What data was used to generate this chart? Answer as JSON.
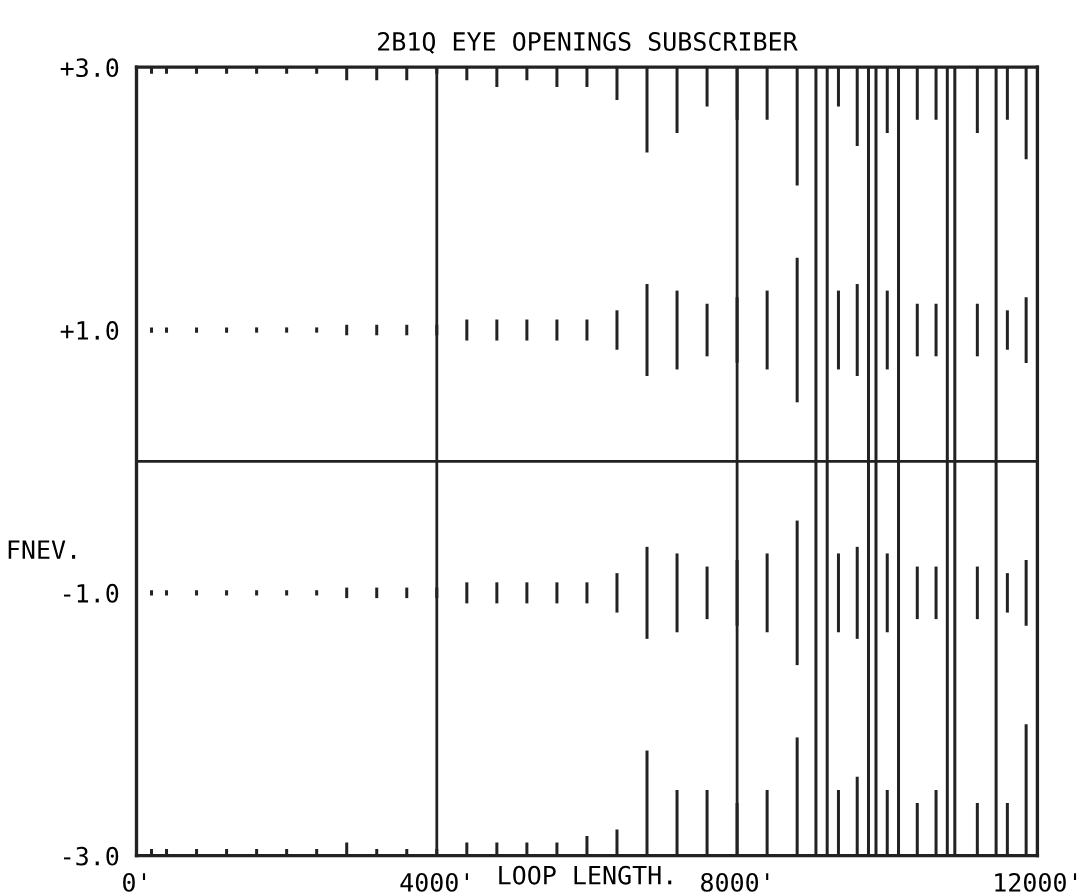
{
  "chart_data": {
    "type": "bar",
    "title": "2B1Q EYE OPENINGS SUBSCRIBER",
    "xlabel": "LOOP LENGTH.",
    "ylabel": "FNEV.",
    "xlim": [
      0,
      12000
    ],
    "ylim": [
      -3.0,
      3.0
    ],
    "xticks": [
      {
        "value": 0,
        "label": "0'"
      },
      {
        "value": 4000,
        "label": "4000'"
      },
      {
        "value": 8000,
        "label": "8000'"
      },
      {
        "value": 12000,
        "label": "12000'"
      }
    ],
    "yticks": [
      {
        "value": 3.0,
        "label": "+3.0"
      },
      {
        "value": 1.0,
        "label": "+1.0"
      },
      {
        "value": -1.0,
        "label": "-1.0"
      },
      {
        "value": -3.0,
        "label": "-3.0"
      }
    ],
    "grid": "x",
    "ref_lines": [
      {
        "axis": "y",
        "value": 0,
        "label": null,
        "color": "#222222"
      }
    ],
    "series": [
      {
        "color": "#222222",
        "x": [
          200,
          400,
          800,
          1200,
          1600,
          2000,
          2400,
          2800,
          3200,
          3600,
          4000,
          4400,
          4800,
          5200,
          5600,
          6000,
          6400,
          6800,
          7200,
          7600,
          8000,
          8400,
          8800,
          9350,
          9600,
          10000,
          10400,
          10650,
          11200,
          11600,
          11850
        ],
        "base": [
          3,
          3,
          3,
          3,
          3,
          3,
          3,
          3,
          3,
          3,
          3,
          3,
          3,
          3,
          3,
          3,
          3,
          3,
          3,
          3,
          3,
          3,
          3,
          3,
          3,
          3,
          3,
          3,
          3,
          3,
          3
        ],
        "values": [
          -0.05,
          -0.05,
          -0.05,
          -0.05,
          -0.05,
          -0.05,
          -0.05,
          -0.1,
          -0.1,
          -0.1,
          -0.05,
          -0.1,
          -0.15,
          -0.1,
          -0.15,
          -0.15,
          -0.25,
          -0.65,
          -0.5,
          -0.3,
          -0.4,
          -0.4,
          -0.9,
          -0.3,
          -0.6,
          -0.5,
          -0.4,
          -0.4,
          -0.5,
          -0.4,
          -0.7
        ]
      },
      {
        "color": "#222222",
        "x": [
          200,
          400,
          800,
          1200,
          1600,
          2000,
          2400,
          2800,
          3200,
          3600,
          4000,
          4400,
          4800,
          5200,
          5600,
          6000,
          6400,
          6800,
          7200,
          7600,
          8000,
          8400,
          8800,
          9350,
          9600,
          10000,
          10400,
          10650,
          11200,
          11600,
          11850
        ],
        "base": [
          0.98,
          0.98,
          0.98,
          0.98,
          0.98,
          0.98,
          0.98,
          0.96,
          0.96,
          0.96,
          0.96,
          0.92,
          0.92,
          0.92,
          0.92,
          0.92,
          0.85,
          0.65,
          0.7,
          0.8,
          0.75,
          0.7,
          0.45,
          0.7,
          0.65,
          0.7,
          0.8,
          0.8,
          0.8,
          0.85,
          0.75
        ],
        "values": [
          0.04,
          0.04,
          0.04,
          0.04,
          0.04,
          0.04,
          0.04,
          0.08,
          0.08,
          0.08,
          0.08,
          0.16,
          0.16,
          0.16,
          0.16,
          0.16,
          0.3,
          0.7,
          0.6,
          0.4,
          0.5,
          0.6,
          1.1,
          0.6,
          0.7,
          0.6,
          0.4,
          0.4,
          0.4,
          0.3,
          0.5
        ]
      },
      {
        "color": "#222222",
        "x": [
          200,
          400,
          800,
          1200,
          1600,
          2000,
          2400,
          2800,
          3200,
          3600,
          4000,
          4400,
          4800,
          5200,
          5600,
          6000,
          6400,
          6800,
          7200,
          7600,
          8000,
          8400,
          8800,
          9350,
          9600,
          10000,
          10400,
          10650,
          11200,
          11600,
          11850
        ],
        "base": [
          -1.02,
          -1.02,
          -1.02,
          -1.02,
          -1.02,
          -1.02,
          -1.02,
          -1.04,
          -1.04,
          -1.04,
          -1.04,
          -1.08,
          -1.08,
          -1.08,
          -1.08,
          -1.08,
          -1.15,
          -1.35,
          -1.3,
          -1.2,
          -1.25,
          -1.3,
          -1.55,
          -1.3,
          -1.35,
          -1.3,
          -1.2,
          -1.2,
          -1.2,
          -1.15,
          -1.25
        ],
        "values": [
          0.04,
          0.04,
          0.04,
          0.04,
          0.04,
          0.04,
          0.04,
          0.08,
          0.08,
          0.08,
          0.08,
          0.16,
          0.16,
          0.16,
          0.16,
          0.16,
          0.3,
          0.7,
          0.6,
          0.4,
          0.5,
          0.6,
          1.1,
          0.6,
          0.7,
          0.6,
          0.4,
          0.4,
          0.4,
          0.3,
          0.5
        ]
      },
      {
        "color": "#222222",
        "x": [
          200,
          400,
          800,
          1200,
          1600,
          2000,
          2400,
          2800,
          3200,
          3600,
          4000,
          4400,
          4800,
          5200,
          5600,
          6000,
          6400,
          6800,
          7200,
          7600,
          8000,
          8400,
          8800,
          9350,
          9600,
          10000,
          10400,
          10650,
          11200,
          11600,
          11850
        ],
        "base": [
          -3,
          -3,
          -3,
          -3,
          -3,
          -3,
          -3,
          -3,
          -3,
          -3,
          -3,
          -3,
          -3,
          -3,
          -3,
          -3,
          -3,
          -3,
          -3,
          -3,
          -3,
          -3,
          -3,
          -3,
          -3,
          -3,
          -3,
          -3,
          -3,
          -3,
          -3
        ],
        "values": [
          0.05,
          0.05,
          0.05,
          0.05,
          0.05,
          0.05,
          0.05,
          0.1,
          0.05,
          0.05,
          0.05,
          0.1,
          0.1,
          0.1,
          0.1,
          0.15,
          0.2,
          0.8,
          0.5,
          0.5,
          0.4,
          0.5,
          0.9,
          0.5,
          0.6,
          0.5,
          0.4,
          0.5,
          0.4,
          0.4,
          1.0
        ]
      },
      {
        "color": "#222222",
        "x": [
          9050,
          9200,
          9750,
          9850,
          10150,
          10800,
          10900,
          11450
        ],
        "base": [
          -3,
          -3,
          -3,
          -3,
          -3,
          -3,
          -3,
          -3
        ],
        "values": [
          6,
          6,
          6,
          6,
          6,
          6,
          6,
          6
        ]
      }
    ]
  }
}
